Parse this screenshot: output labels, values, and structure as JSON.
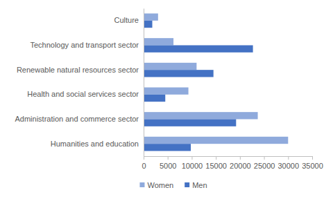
{
  "chart_data": {
    "type": "bar",
    "orientation": "horizontal",
    "categories": [
      "Culture",
      "Technology and transport sector",
      "Renewable natural resources sector",
      "Health and social services sector",
      "Administration and commerce sector",
      "Humanities and education"
    ],
    "series": [
      {
        "name": "Women",
        "color": "#8faadc",
        "values": [
          3000,
          6200,
          11000,
          9300,
          23700,
          30000
        ]
      },
      {
        "name": "Men",
        "color": "#4472c4",
        "values": [
          1800,
          22700,
          14500,
          4500,
          19200,
          9800
        ]
      }
    ],
    "xlim": [
      0,
      35000
    ],
    "xticks": [
      0,
      5000,
      10000,
      15000,
      20000,
      25000,
      30000,
      35000
    ],
    "grid": false,
    "legend": "bottom"
  }
}
